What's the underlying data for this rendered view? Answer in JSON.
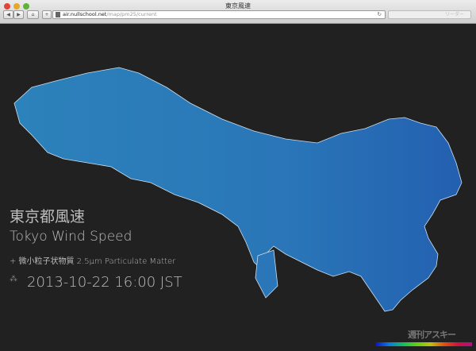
{
  "window": {
    "title": "東京風速"
  },
  "toolbar": {
    "back": "◀",
    "forward": "▶",
    "home": "⌂",
    "add": "+",
    "url_host": "air.nullschool.net",
    "url_path": "/map/pm25/current",
    "reload": "↻",
    "reader": "リーダー"
  },
  "overlay": {
    "title_ja": "東京都風速",
    "title_en": "Tokyo Wind Speed",
    "subtitle": "+ 微小粒子状物質 2.5μm Particulate Matter",
    "datetime": "2013-10-22 16:00 JST",
    "menu_icon": "stars-icon"
  },
  "watermark": "週刊アスキー",
  "colors": {
    "map": "#2a7fb8",
    "background": "#212121"
  }
}
